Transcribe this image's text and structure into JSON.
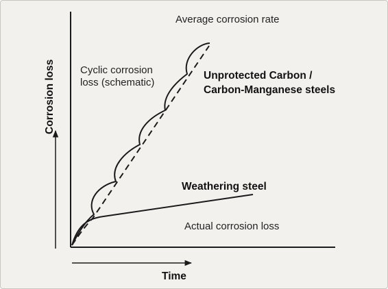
{
  "diagram": {
    "top_label": "Average corrosion rate",
    "cyclic_label": [
      "Cyclic corrosion",
      "loss (schematic)"
    ],
    "unprotected_label": [
      "Unprotected Carbon /",
      "Carbon-Manganese steels"
    ],
    "weathering_label": "Weathering steel",
    "actual_label": "Actual corrosion loss",
    "y_axis_label": "Corrosion loss",
    "x_axis_label": "Time",
    "colors": {
      "background": "#f3f1ed",
      "line": "#1a1a1a",
      "text": "#222222"
    }
  }
}
